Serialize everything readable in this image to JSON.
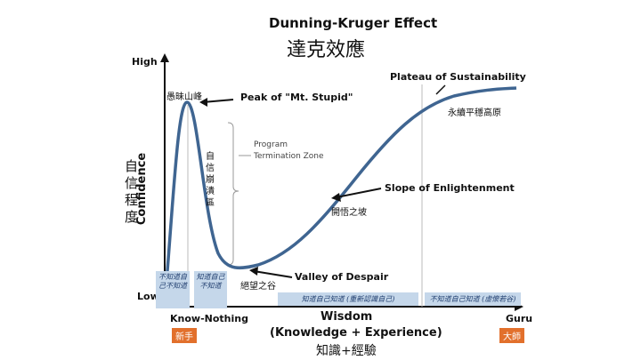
{
  "title": "Dunning-Kruger Effect",
  "title_zh": "達克效應",
  "y_axis": {
    "high": "High",
    "low": "Low",
    "label": "Confidence",
    "label_zh": "自信程度"
  },
  "x_axis": {
    "label": "Wisdom",
    "sublabel": "(Knowledge + Experience)",
    "label_zh": "知識+經驗",
    "left": "Know-Nothing",
    "left_zh": "新手",
    "right": "Guru",
    "right_zh": "大師"
  },
  "annotations": {
    "peak": "Peak of \"Mt. Stupid\"",
    "peak_zh": "愚昧山峰",
    "termination_line1": "Program",
    "termination_line2": "Termination Zone",
    "collapse_zh": "自信崩潰區",
    "valley": "Valley of Despair",
    "valley_zh": "絕望之谷",
    "slope": "Slope of Enlightenment",
    "slope_zh": "開悟之坡",
    "plateau": "Plateau of Sustainability",
    "plateau_zh": "永續平穩高原"
  },
  "stages": [
    "不知道自己不知道",
    "知道自己不知道",
    "知道自己知道 (重新認識自己)",
    "不知道自己知道 (虛懷若谷)"
  ],
  "colors": {
    "curve": "#3f6591",
    "stage_box": "#c5d7ea",
    "badge": "#e2702c"
  }
}
